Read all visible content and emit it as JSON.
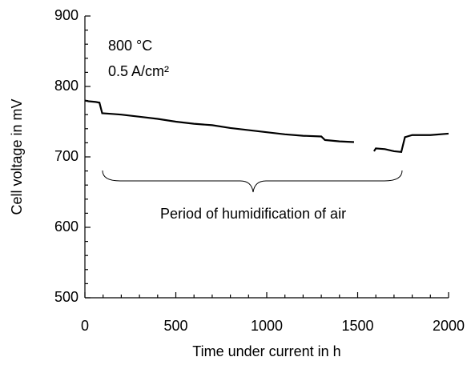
{
  "chart_data": {
    "type": "line",
    "x_label": "Time under current in h",
    "y_label": "Cell voltage in mV",
    "annotations": [
      "800 °C",
      "0.5 A/cm²",
      "Period of humidification of air"
    ],
    "x": [
      0,
      20,
      60,
      80,
      95,
      150,
      200,
      300,
      400,
      500,
      600,
      700,
      800,
      900,
      1000,
      1100,
      1200,
      1300,
      1320,
      1400,
      1480,
      1540,
      1590,
      1600,
      1650,
      1700,
      1740,
      1760,
      1800,
      1900,
      2000
    ],
    "series": [
      {
        "color": "#000000",
        "values": [
          780,
          779,
          778,
          777,
          762,
          761,
          760,
          757,
          754,
          750,
          747,
          745,
          741,
          738,
          735,
          732,
          730,
          729,
          724,
          722,
          721,
          null,
          708,
          712,
          711,
          708,
          707,
          728,
          731,
          731,
          733
        ]
      }
    ],
    "xlim": [
      0,
      2000
    ],
    "xticks": [
      0,
      500,
      1000,
      1500,
      2000
    ],
    "xminorticks": [
      100,
      200,
      300,
      400,
      600,
      700,
      800,
      900,
      1100,
      1200,
      1300,
      1400,
      1600,
      1700,
      1800,
      1900
    ],
    "ylim": [
      500,
      900
    ],
    "yticks": [
      500,
      600,
      700,
      800,
      900
    ],
    "yminorticks": [
      520,
      540,
      560,
      580,
      620,
      640,
      660,
      680,
      720,
      740,
      760,
      780,
      820,
      840,
      860,
      880
    ],
    "grid": false
  }
}
